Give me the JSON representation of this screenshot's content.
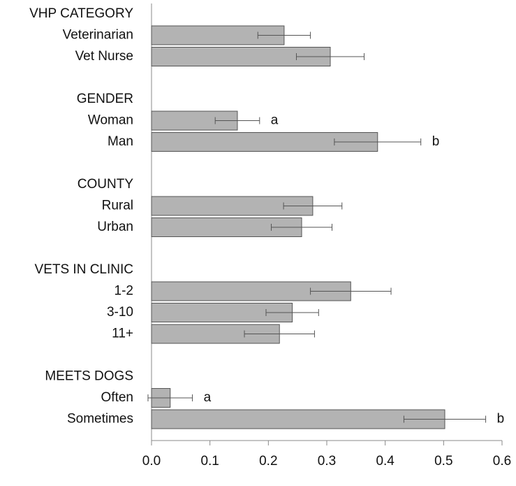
{
  "chart_data": {
    "type": "bar",
    "orientation": "horizontal",
    "color": "#b3b3b3",
    "groups": [
      {
        "name": "VHP CATEGORY",
        "categories": [
          "Veterinarian",
          "Vet Nurse"
        ],
        "values": [
          0.227,
          0.306
        ],
        "errors": [
          0.045,
          0.058
        ]
      },
      {
        "name": "GENDER",
        "categories": [
          "Woman",
          "Man"
        ],
        "values": [
          0.147,
          0.387
        ],
        "errors": [
          0.038,
          0.074
        ],
        "annotations": [
          "a",
          "b"
        ]
      },
      {
        "name": "COUNTY",
        "categories": [
          "Rural",
          "Urban"
        ],
        "values": [
          0.276,
          0.257
        ],
        "errors": [
          0.05,
          0.052
        ]
      },
      {
        "name": "VETS IN CLINIC",
        "categories": [
          "1-2",
          "3-10",
          "11+"
        ],
        "values": [
          0.341,
          0.241,
          0.219
        ],
        "errors": [
          0.069,
          0.045,
          0.06
        ]
      },
      {
        "name": "MEETS DOGS",
        "categories": [
          "Often",
          "Sometimes"
        ],
        "values": [
          0.032,
          0.502
        ],
        "errors": [
          0.038,
          0.07
        ],
        "annotations": [
          "a",
          "b"
        ]
      }
    ],
    "xlim": [
      0,
      0.6
    ],
    "xticks": [
      {
        "value": 0,
        "label": "0.0"
      },
      0.1,
      0.2,
      0.3,
      0.4,
      0.5,
      0.6
    ]
  }
}
